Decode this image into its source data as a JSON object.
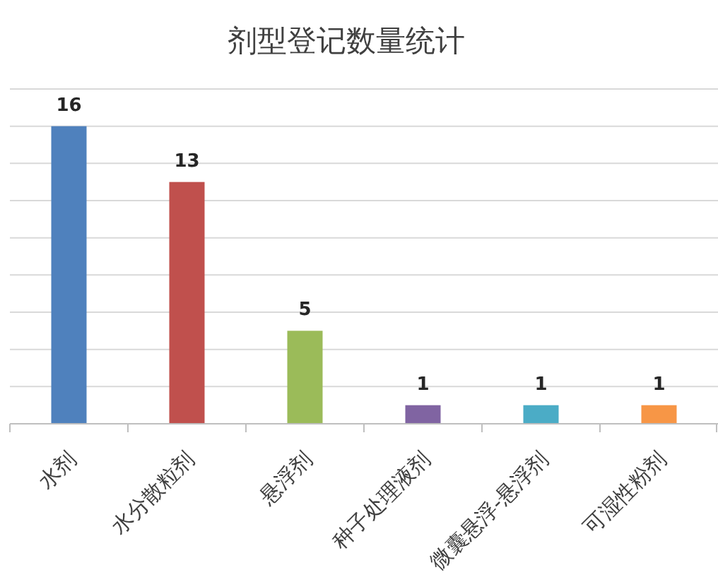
{
  "chart_data": {
    "type": "bar",
    "title": "剂型登记数量统计",
    "categories": [
      "水剂",
      "水分散粒剂",
      "悬浮剂",
      "种子处理液剂",
      "微囊悬浮-悬浮剂",
      "可湿性粉剂"
    ],
    "values": [
      16,
      13,
      5,
      1,
      1,
      1
    ],
    "colors": [
      "#4f81bd",
      "#c0504d",
      "#9bbb59",
      "#8064a2",
      "#4bacc6",
      "#f79646"
    ],
    "ylim": [
      0,
      18
    ],
    "yticks": [
      {
        "value": 0,
        "label": null
      },
      {
        "value": 2,
        "label": null
      },
      {
        "value": 4,
        "label": null
      },
      {
        "value": 6,
        "label": null
      },
      {
        "value": 8,
        "label": null
      },
      {
        "value": 10,
        "label": null
      },
      {
        "value": 12,
        "label": null
      },
      {
        "value": 14,
        "label": null
      },
      {
        "value": 16,
        "label": null
      },
      {
        "value": 18,
        "label": null
      }
    ],
    "grid": "y",
    "data_labels": true,
    "tick_labels": "x"
  }
}
